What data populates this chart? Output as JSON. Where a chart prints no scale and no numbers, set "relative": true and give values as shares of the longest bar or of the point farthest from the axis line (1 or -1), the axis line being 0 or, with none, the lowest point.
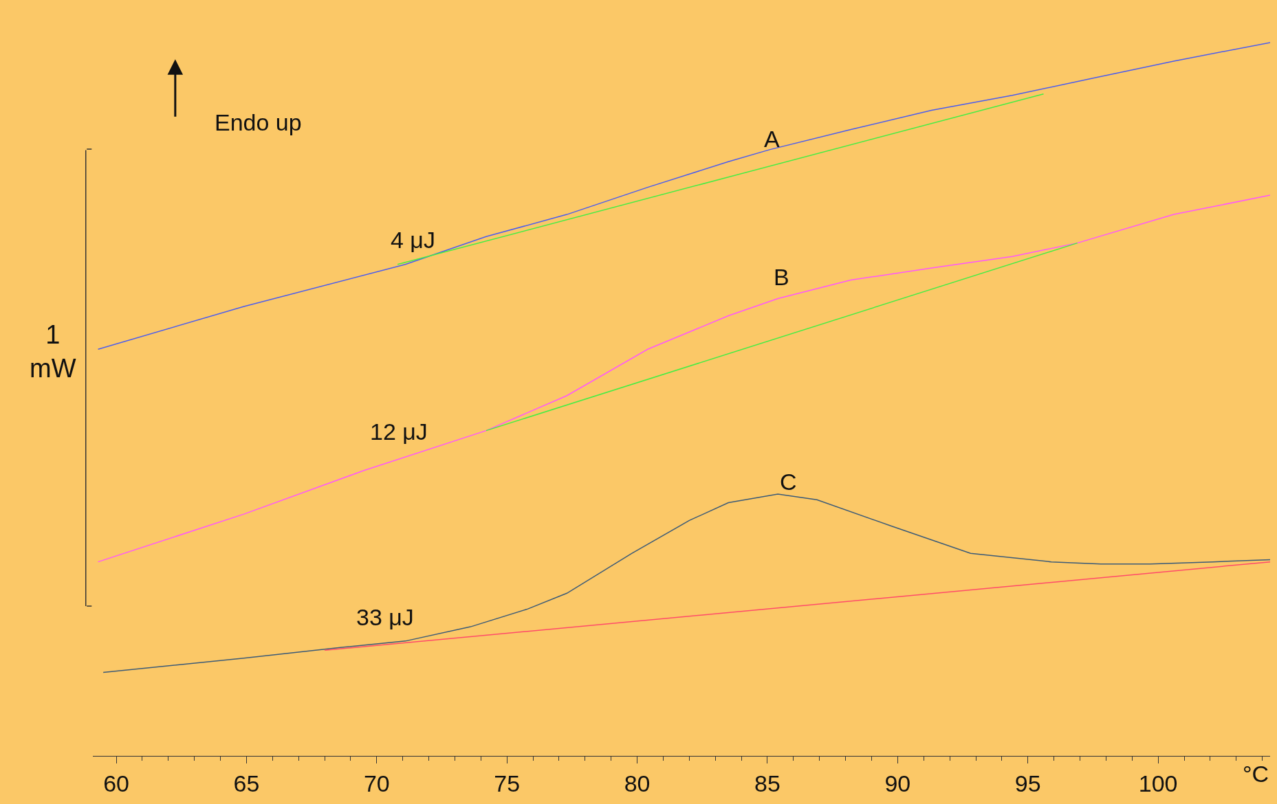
{
  "chart_data": {
    "type": "line",
    "relative": true,
    "xlabel": "°C",
    "xlim": [
      59.1,
      104.3
    ],
    "xticks": [
      60,
      {
        "value": 61,
        "label": null
      },
      {
        "value": 62,
        "label": null
      },
      {
        "value": 63,
        "label": null
      },
      {
        "value": 64,
        "label": null
      },
      65,
      {
        "value": 66,
        "label": null
      },
      {
        "value": 67,
        "label": null
      },
      {
        "value": 68,
        "label": null
      },
      {
        "value": 69,
        "label": null
      },
      70,
      {
        "value": 71,
        "label": null
      },
      {
        "value": 72,
        "label": null
      },
      {
        "value": 73,
        "label": null
      },
      {
        "value": 74,
        "label": null
      },
      75,
      {
        "value": 76,
        "label": null
      },
      {
        "value": 77,
        "label": null
      },
      {
        "value": 78,
        "label": null
      },
      {
        "value": 79,
        "label": null
      },
      80,
      {
        "value": 81,
        "label": null
      },
      {
        "value": 82,
        "label": null
      },
      {
        "value": 83,
        "label": null
      },
      {
        "value": 84,
        "label": null
      },
      85,
      {
        "value": 86,
        "label": null
      },
      {
        "value": 87,
        "label": null
      },
      {
        "value": 88,
        "label": null
      },
      {
        "value": 89,
        "label": null
      },
      90,
      {
        "value": 91,
        "label": null
      },
      {
        "value": 92,
        "label": null
      },
      {
        "value": 93,
        "label": null
      },
      {
        "value": 94,
        "label": null
      },
      95,
      {
        "value": 96,
        "label": null
      },
      {
        "value": 97,
        "label": null
      },
      {
        "value": 98,
        "label": null
      },
      {
        "value": 99,
        "label": null
      },
      100,
      {
        "value": 101,
        "label": null
      },
      {
        "value": 102,
        "label": null
      },
      {
        "value": 103,
        "label": null
      },
      {
        "value": 104,
        "label": null
      }
    ],
    "grid": false,
    "marker": "none",
    "line_style": "solid",
    "series": [
      {
        "color": "#4a5cf0",
        "x": [
          59.3,
          64.9,
          71.1,
          74.2,
          77.3,
          80.4,
          83.5,
          85.1,
          88.2,
          91.3,
          94.4,
          97.5,
          100.6,
          104.3
        ],
        "values": [
          0.57,
          0.63,
          0.689,
          0.728,
          0.759,
          0.797,
          0.833,
          0.85,
          0.878,
          0.905,
          0.926,
          0.95,
          0.974,
          1
        ]
      },
      {
        "color": "#44ee44",
        "x": [
          70.8,
          95.6
        ],
        "values": [
          0.689,
          0.928
        ]
      },
      {
        "color": "#ff55ff",
        "x": [
          59.3,
          64.9,
          69.5,
          74.2,
          77.3,
          80.4,
          83.5,
          85.4,
          88.2,
          91.3,
          94.4,
          96.9,
          100.6,
          104.3
        ],
        "values": [
          0.272,
          0.339,
          0.4,
          0.456,
          0.505,
          0.57,
          0.617,
          0.641,
          0.667,
          0.684,
          0.7,
          0.719,
          0.759,
          0.786
        ]
      },
      {
        "color": "#44ee44",
        "x": [
          74.2,
          96.9
        ],
        "values": [
          0.456,
          0.719
        ]
      },
      {
        "color": "#3a5a78",
        "x": [
          59.5,
          64.9,
          68.6,
          71.1,
          73.6,
          75.8,
          77.3,
          79.8,
          82.0,
          83.5,
          85.4,
          86.9,
          89.7,
          92.8,
          95.9,
          97.8,
          99.7,
          102.1,
          104.3
        ],
        "values": [
          0.117,
          0.137,
          0.152,
          0.161,
          0.181,
          0.206,
          0.228,
          0.284,
          0.33,
          0.355,
          0.367,
          0.359,
          0.323,
          0.284,
          0.272,
          0.269,
          0.269,
          0.272,
          0.275
        ]
      },
      {
        "color": "#ff4a6a",
        "x": [
          68.0,
          104.3
        ],
        "values": [
          0.148,
          0.272
        ]
      }
    ],
    "annotations": [
      "Endo up",
      "1\nmW",
      "A",
      "B",
      "C",
      "4 μJ",
      "12 μJ",
      "33 μJ"
    ]
  }
}
